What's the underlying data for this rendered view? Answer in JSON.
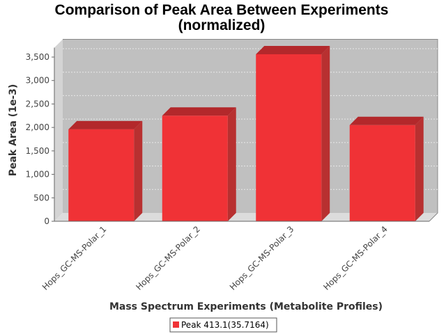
{
  "chart_data": {
    "type": "bar",
    "title": [
      "Comparison of Peak Area Between Experiments",
      "(normalized)"
    ],
    "xlabel": "Mass Spectrum Experiments (Metabolite Profiles)",
    "ylabel": "Peak Area (1e-3)",
    "categories": [
      "Hops_GC-MS-Polar_1",
      "Hops_GC-MS-Polar_2",
      "Hops_GC-MS-Polar_3",
      "Hops_GC-MS-Polar_4"
    ],
    "series": [
      {
        "name": "Peak 413.1(35.7164)",
        "values": [
          1960,
          2250,
          3560,
          2050
        ]
      }
    ],
    "ylim": [
      0,
      3700
    ],
    "yticks": [
      0,
      500,
      1000,
      1500,
      2000,
      2500,
      3000,
      3500
    ],
    "ytick_labels": [
      "0",
      "500",
      "1,000",
      "1,500",
      "2,000",
      "2,500",
      "3,000",
      "3,500"
    ],
    "grid": true,
    "style": "3d",
    "legend_position": "bottom",
    "colors": {
      "bar_front": "#f03236",
      "bar_top": "#b3282b",
      "bar_side": "#b83030",
      "plot_back": "#c0c0c0",
      "plot_floor": "#dcdcdc",
      "plot_wall": "#d4d4d4",
      "grid": "#e8e8e8"
    }
  }
}
